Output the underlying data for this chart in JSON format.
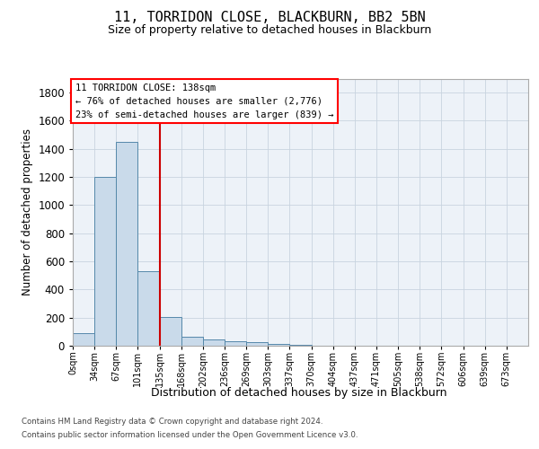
{
  "title1": "11, TORRIDON CLOSE, BLACKBURN, BB2 5BN",
  "title2": "Size of property relative to detached houses in Blackburn",
  "xlabel": "Distribution of detached houses by size in Blackburn",
  "ylabel": "Number of detached properties",
  "bin_labels": [
    "0sqm",
    "34sqm",
    "67sqm",
    "101sqm",
    "135sqm",
    "168sqm",
    "202sqm",
    "236sqm",
    "269sqm",
    "303sqm",
    "337sqm",
    "370sqm",
    "404sqm",
    "437sqm",
    "471sqm",
    "505sqm",
    "538sqm",
    "572sqm",
    "606sqm",
    "639sqm",
    "673sqm"
  ],
  "bar_heights": [
    90,
    1200,
    1450,
    530,
    205,
    65,
    45,
    32,
    27,
    10,
    8,
    0,
    0,
    0,
    0,
    0,
    0,
    0,
    0,
    0,
    0
  ],
  "bar_color": "#c9daea",
  "bar_edge_color": "#5588aa",
  "bg_color": "#edf2f8",
  "grid_color": "#c8d4df",
  "vline_x_index": 4,
  "vline_color": "#cc0000",
  "annotation_line1": "11 TORRIDON CLOSE: 138sqm",
  "annotation_line2": "← 76% of detached houses are smaller (2,776)",
  "annotation_line3": "23% of semi-detached houses are larger (839) →",
  "footer1": "Contains HM Land Registry data © Crown copyright and database right 2024.",
  "footer2": "Contains public sector information licensed under the Open Government Licence v3.0.",
  "ylim_max": 1900,
  "yticks": [
    0,
    200,
    400,
    600,
    800,
    1000,
    1200,
    1400,
    1600,
    1800
  ],
  "title1_fontsize": 11,
  "title2_fontsize": 9,
  "ylabel_fontsize": 8.5,
  "xlabel_fontsize": 9,
  "ytick_fontsize": 8.5,
  "xtick_fontsize": 7
}
